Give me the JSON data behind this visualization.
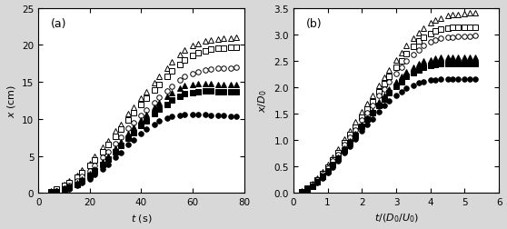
{
  "panel_a": {
    "xlabel": "$t$ (s)",
    "ylabel": "$x$ (cm)",
    "xlim": [
      0,
      80
    ],
    "ylim": [
      0,
      25
    ],
    "xticks": [
      0,
      20,
      40,
      60,
      80
    ],
    "yticks": [
      0,
      5,
      10,
      15,
      20,
      25
    ],
    "label": "(a)",
    "series": [
      {
        "name": "open_triangle",
        "marker": "^",
        "fill": false,
        "t": [
          5,
          7,
          10,
          12,
          15,
          17,
          20,
          22,
          25,
          27,
          30,
          32,
          35,
          37,
          40,
          42,
          45,
          47,
          50,
          52,
          55,
          57,
          60,
          62,
          65,
          67,
          70,
          72,
          75,
          77
        ],
        "x": [
          0.3,
          0.6,
          1.1,
          1.6,
          2.4,
          3.1,
          4.0,
          4.9,
          6.2,
          7.1,
          8.4,
          9.3,
          10.7,
          11.6,
          12.8,
          13.7,
          14.9,
          15.8,
          16.9,
          17.7,
          18.7,
          19.3,
          19.9,
          20.2,
          20.5,
          20.7,
          20.8,
          20.9,
          20.9,
          21.0
        ]
      },
      {
        "name": "open_square",
        "marker": "s",
        "fill": false,
        "t": [
          5,
          7,
          10,
          12,
          15,
          17,
          20,
          22,
          25,
          27,
          30,
          32,
          35,
          37,
          40,
          42,
          45,
          47,
          50,
          52,
          55,
          57,
          60,
          62,
          65,
          67,
          70,
          72,
          75,
          77
        ],
        "x": [
          0.2,
          0.5,
          1.0,
          1.4,
          2.1,
          2.8,
          3.7,
          4.5,
          5.6,
          6.5,
          7.7,
          8.6,
          9.9,
          10.8,
          11.9,
          12.8,
          13.9,
          14.7,
          15.7,
          16.5,
          17.4,
          18.0,
          18.6,
          18.9,
          19.2,
          19.4,
          19.5,
          19.6,
          19.7,
          19.7
        ]
      },
      {
        "name": "open_circle",
        "marker": "o",
        "fill": false,
        "t": [
          5,
          7,
          10,
          12,
          15,
          17,
          20,
          22,
          25,
          27,
          30,
          32,
          35,
          37,
          40,
          42,
          45,
          47,
          50,
          52,
          55,
          57,
          60,
          62,
          65,
          67,
          70,
          72,
          75,
          77
        ],
        "x": [
          0.1,
          0.3,
          0.7,
          1.0,
          1.6,
          2.2,
          3.0,
          3.7,
          4.8,
          5.6,
          6.7,
          7.5,
          8.7,
          9.5,
          10.5,
          11.2,
          12.2,
          12.9,
          13.8,
          14.4,
          15.2,
          15.7,
          16.1,
          16.4,
          16.6,
          16.7,
          16.8,
          16.9,
          16.9,
          17.0
        ]
      },
      {
        "name": "filled_triangle",
        "marker": "^",
        "fill": true,
        "t": [
          5,
          7,
          10,
          12,
          15,
          17,
          20,
          22,
          25,
          27,
          30,
          32,
          35,
          37,
          40,
          42,
          45,
          47,
          50,
          52,
          55,
          57,
          60,
          62,
          65,
          67,
          70,
          72,
          75,
          77
        ],
        "x": [
          0.1,
          0.3,
          0.6,
          0.9,
          1.4,
          1.9,
          2.6,
          3.3,
          4.2,
          5.0,
          6.1,
          6.9,
          8.0,
          8.9,
          9.9,
          10.6,
          11.6,
          12.2,
          13.0,
          13.6,
          14.2,
          14.5,
          14.7,
          14.8,
          14.8,
          14.8,
          14.7,
          14.7,
          14.7,
          14.7
        ]
      },
      {
        "name": "filled_square",
        "marker": "s",
        "fill": true,
        "t": [
          5,
          7,
          10,
          12,
          15,
          17,
          20,
          22,
          25,
          27,
          30,
          32,
          35,
          37,
          40,
          42,
          45,
          47,
          50,
          52,
          55,
          57,
          60,
          62,
          65,
          67,
          70,
          72,
          75,
          77
        ],
        "x": [
          0.1,
          0.2,
          0.5,
          0.8,
          1.2,
          1.7,
          2.4,
          3.0,
          3.9,
          4.6,
          5.6,
          6.4,
          7.4,
          8.2,
          9.1,
          9.8,
          10.7,
          11.3,
          12.0,
          12.5,
          13.1,
          13.4,
          13.6,
          13.7,
          13.8,
          13.8,
          13.7,
          13.7,
          13.7,
          13.7
        ]
      },
      {
        "name": "filled_circle",
        "marker": "o",
        "fill": true,
        "t": [
          5,
          7,
          10,
          12,
          15,
          17,
          20,
          22,
          25,
          27,
          30,
          32,
          35,
          37,
          40,
          42,
          45,
          47,
          50,
          52,
          55,
          57,
          60,
          62,
          65,
          67,
          70,
          72,
          75,
          77
        ],
        "x": [
          0.1,
          0.2,
          0.4,
          0.6,
          1.0,
          1.4,
          1.9,
          2.5,
          3.2,
          3.9,
          4.8,
          5.5,
          6.5,
          7.2,
          8.0,
          8.6,
          9.3,
          9.7,
          10.1,
          10.3,
          10.5,
          10.6,
          10.6,
          10.6,
          10.6,
          10.5,
          10.5,
          10.5,
          10.4,
          10.4
        ]
      }
    ]
  },
  "panel_b": {
    "xlabel": "$t/(D_0/U_0)$",
    "ylabel": "$x/D_0$",
    "xlim": [
      0,
      6
    ],
    "ylim": [
      0,
      3.5
    ],
    "xticks": [
      0,
      1,
      2,
      3,
      4,
      5,
      6
    ],
    "yticks": [
      0,
      0.5,
      1.0,
      1.5,
      2.0,
      2.5,
      3.0,
      3.5
    ],
    "label": "(b)",
    "series": [
      {
        "name": "open_triangle",
        "marker": "^",
        "fill": false,
        "t": [
          0.25,
          0.4,
          0.55,
          0.7,
          0.85,
          1.0,
          1.15,
          1.3,
          1.5,
          1.65,
          1.8,
          2.0,
          2.15,
          2.3,
          2.5,
          2.65,
          2.8,
          3.0,
          3.15,
          3.3,
          3.5,
          3.65,
          3.8,
          4.0,
          4.15,
          4.3,
          4.5,
          4.65,
          4.8,
          5.0,
          5.15,
          5.3
        ],
        "x": [
          0.04,
          0.1,
          0.18,
          0.28,
          0.4,
          0.54,
          0.68,
          0.83,
          1.02,
          1.18,
          1.34,
          1.53,
          1.69,
          1.85,
          2.04,
          2.19,
          2.33,
          2.51,
          2.65,
          2.78,
          2.93,
          3.03,
          3.12,
          3.21,
          3.27,
          3.31,
          3.35,
          3.37,
          3.38,
          3.39,
          3.4,
          3.4
        ]
      },
      {
        "name": "open_square",
        "marker": "s",
        "fill": false,
        "t": [
          0.25,
          0.4,
          0.55,
          0.7,
          0.85,
          1.0,
          1.15,
          1.3,
          1.5,
          1.65,
          1.8,
          2.0,
          2.15,
          2.3,
          2.5,
          2.65,
          2.8,
          3.0,
          3.15,
          3.3,
          3.5,
          3.65,
          3.8,
          4.0,
          4.15,
          4.3,
          4.5,
          4.65,
          4.8,
          5.0,
          5.15,
          5.3
        ],
        "x": [
          0.03,
          0.09,
          0.16,
          0.25,
          0.36,
          0.49,
          0.63,
          0.77,
          0.95,
          1.1,
          1.25,
          1.43,
          1.58,
          1.73,
          1.92,
          2.06,
          2.2,
          2.37,
          2.5,
          2.63,
          2.77,
          2.87,
          2.95,
          3.02,
          3.07,
          3.1,
          3.12,
          3.13,
          3.13,
          3.13,
          3.13,
          3.13
        ]
      },
      {
        "name": "open_circle",
        "marker": "o",
        "fill": false,
        "t": [
          0.25,
          0.4,
          0.55,
          0.7,
          0.85,
          1.0,
          1.15,
          1.3,
          1.5,
          1.65,
          1.8,
          2.0,
          2.15,
          2.3,
          2.5,
          2.65,
          2.8,
          3.0,
          3.15,
          3.3,
          3.5,
          3.65,
          3.8,
          4.0,
          4.15,
          4.3,
          4.5,
          4.65,
          4.8,
          5.0,
          5.15,
          5.3
        ],
        "x": [
          0.03,
          0.08,
          0.15,
          0.24,
          0.35,
          0.47,
          0.6,
          0.73,
          0.91,
          1.06,
          1.2,
          1.38,
          1.52,
          1.66,
          1.84,
          1.97,
          2.1,
          2.26,
          2.38,
          2.49,
          2.62,
          2.71,
          2.78,
          2.85,
          2.89,
          2.92,
          2.94,
          2.95,
          2.96,
          2.96,
          2.96,
          2.97
        ]
      },
      {
        "name": "filled_triangle",
        "marker": "^",
        "fill": true,
        "t": [
          0.25,
          0.4,
          0.55,
          0.7,
          0.85,
          1.0,
          1.15,
          1.3,
          1.5,
          1.65,
          1.8,
          2.0,
          2.15,
          2.3,
          2.5,
          2.65,
          2.8,
          3.0,
          3.15,
          3.3,
          3.5,
          3.65,
          3.8,
          4.0,
          4.15,
          4.3,
          4.5,
          4.65,
          4.8,
          5.0,
          5.15,
          5.3
        ],
        "x": [
          0.02,
          0.07,
          0.13,
          0.21,
          0.31,
          0.42,
          0.54,
          0.67,
          0.84,
          0.98,
          1.12,
          1.29,
          1.42,
          1.56,
          1.72,
          1.84,
          1.96,
          2.1,
          2.2,
          2.29,
          2.38,
          2.44,
          2.49,
          2.52,
          2.55,
          2.56,
          2.57,
          2.57,
          2.57,
          2.57,
          2.57,
          2.57
        ]
      },
      {
        "name": "filled_square",
        "marker": "s",
        "fill": true,
        "t": [
          0.25,
          0.4,
          0.55,
          0.7,
          0.85,
          1.0,
          1.15,
          1.3,
          1.5,
          1.65,
          1.8,
          2.0,
          2.15,
          2.3,
          2.5,
          2.65,
          2.8,
          3.0,
          3.15,
          3.3,
          3.5,
          3.65,
          3.8,
          4.0,
          4.15,
          4.3,
          4.5,
          4.65,
          4.8,
          5.0,
          5.15,
          5.3
        ],
        "x": [
          0.02,
          0.07,
          0.13,
          0.21,
          0.31,
          0.42,
          0.54,
          0.66,
          0.82,
          0.96,
          1.09,
          1.26,
          1.39,
          1.51,
          1.66,
          1.78,
          1.89,
          2.02,
          2.11,
          2.2,
          2.28,
          2.33,
          2.38,
          2.41,
          2.43,
          2.44,
          2.44,
          2.44,
          2.44,
          2.44,
          2.44,
          2.44
        ]
      },
      {
        "name": "filled_circle",
        "marker": "o",
        "fill": true,
        "t": [
          0.25,
          0.4,
          0.55,
          0.7,
          0.85,
          1.0,
          1.15,
          1.3,
          1.5,
          1.65,
          1.8,
          2.0,
          2.15,
          2.3,
          2.5,
          2.65,
          2.8,
          3.0,
          3.15,
          3.3,
          3.5,
          3.65,
          3.8,
          4.0,
          4.15,
          4.3,
          4.5,
          4.65,
          4.8,
          5.0,
          5.15,
          5.3
        ],
        "x": [
          0.02,
          0.06,
          0.12,
          0.19,
          0.28,
          0.38,
          0.49,
          0.61,
          0.76,
          0.89,
          1.02,
          1.17,
          1.29,
          1.4,
          1.54,
          1.65,
          1.74,
          1.84,
          1.92,
          1.98,
          2.04,
          2.08,
          2.11,
          2.13,
          2.14,
          2.15,
          2.15,
          2.15,
          2.15,
          2.15,
          2.15,
          2.15
        ]
      }
    ]
  },
  "fig_bg": "#d8d8d8",
  "axes_bg": "#ffffff",
  "marker_size": 4,
  "marker_edge_width": 0.7
}
